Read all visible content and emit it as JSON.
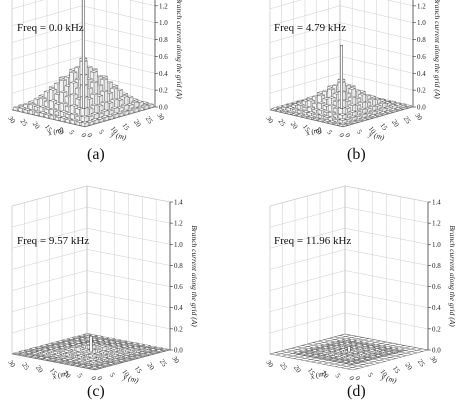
{
  "chart_data": [
    {
      "type": "bar3d",
      "panel_label": "(a)",
      "annotation": "Freq = 0.0 kHz",
      "zlabel": "Branch current along the grid (A)",
      "xlabel": "x (m)",
      "ylabel": "y (m)",
      "z_ticks": [
        "0.0",
        "0.2",
        "0.4",
        "0.6",
        "0.8",
        "1.0",
        "1.2",
        "1.4"
      ],
      "x_ticks": [
        "0",
        "5",
        "10",
        "15",
        "20",
        "25",
        "30"
      ],
      "y_ticks": [
        "0",
        "5",
        "10",
        "15",
        "20",
        "25",
        "30"
      ],
      "zlim": [
        0,
        1.4
      ],
      "peak_value": 1.3,
      "center_values": [
        0.58,
        0.45,
        0.36,
        0.25,
        0.15,
        0.08,
        0.04
      ]
    },
    {
      "type": "bar3d",
      "panel_label": "(b)",
      "annotation": "Freq = 4.79 kHz",
      "zlabel": "Branch current along the grid (A)",
      "xlabel": "x (m)",
      "ylabel": "y (m)",
      "z_ticks": [
        "0.0",
        "0.2",
        "0.4",
        "0.6",
        "0.8",
        "1.0",
        "1.2",
        "1.4"
      ],
      "x_ticks": [
        "0",
        "5",
        "10",
        "15",
        "20",
        "25",
        "30"
      ],
      "y_ticks": [
        "0",
        "5",
        "10",
        "15",
        "20",
        "25",
        "30"
      ],
      "zlim": [
        0,
        1.4
      ],
      "peak_value": 0.75,
      "center_values": [
        0.33,
        0.25,
        0.18,
        0.12,
        0.07,
        0.04,
        0.02
      ]
    },
    {
      "type": "bar3d",
      "panel_label": "(c)",
      "annotation": "Freq = 9.57 kHz",
      "zlabel": "Branch current along the grid (A)",
      "xlabel": "x (m)",
      "ylabel": "y (m)",
      "z_ticks": [
        "0.0",
        "0.2",
        "0.4",
        "0.6",
        "0.8",
        "1.0",
        "1.2",
        "1.4"
      ],
      "x_ticks": [
        "0",
        "5",
        "10",
        "15",
        "20",
        "25",
        "30"
      ],
      "y_ticks": [
        "0",
        "5",
        "10",
        "15",
        "20",
        "25",
        "30"
      ],
      "zlim": [
        0,
        1.4
      ],
      "peak_value": 0.15,
      "center_values": [
        0.08,
        0.06,
        0.04,
        0.03,
        0.02,
        0.01,
        0.01
      ]
    },
    {
      "type": "bar3d",
      "panel_label": "(d)",
      "annotation": "Freq = 11.96 kHz",
      "zlabel": "Branch current along the grid (A)",
      "xlabel": "x (m)",
      "ylabel": "y (m)",
      "z_ticks": [
        "0.0",
        "0.2",
        "0.4",
        "0.6",
        "0.8",
        "1.0",
        "1.2",
        "1.4"
      ],
      "x_ticks": [
        "0",
        "5",
        "10",
        "15",
        "20",
        "25",
        "30"
      ],
      "y_ticks": [
        "0",
        "5",
        "10",
        "15",
        "20",
        "25",
        "30"
      ],
      "zlim": [
        0,
        1.4
      ],
      "peak_value": 0.05,
      "center_values": [
        0.03,
        0.02,
        0.02,
        0.01,
        0.01,
        0.0,
        0.0
      ]
    }
  ]
}
